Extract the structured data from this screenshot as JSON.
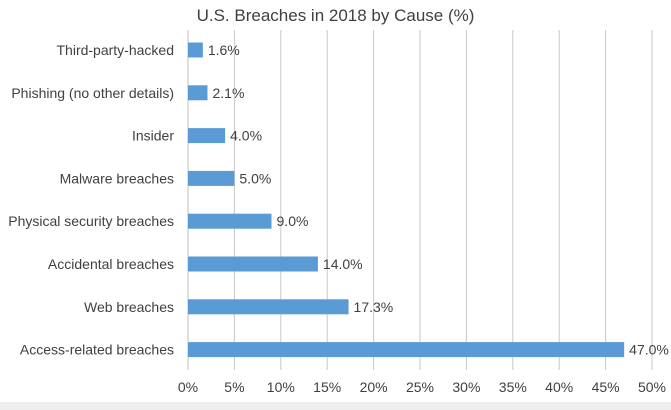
{
  "chart_data": {
    "type": "bar",
    "orientation": "horizontal",
    "title": "U.S. Breaches in 2018 by Cause (%)",
    "xlabel": "",
    "ylabel": "",
    "categories": [
      "Third-party-hacked",
      "Phishing (no other details)",
      "Insider",
      "Malware breaches",
      "Physical security breaches",
      "Accidental breaches",
      "Web breaches",
      "Access-related breaches"
    ],
    "values": [
      1.6,
      2.1,
      4.0,
      5.0,
      9.0,
      14.0,
      17.3,
      47.0
    ],
    "data_labels": [
      "1.6%",
      "2.1%",
      "4.0%",
      "5.0%",
      "9.0%",
      "14.0%",
      "17.3%",
      "47.0%"
    ],
    "xlim": [
      0,
      50
    ],
    "x_ticks": [
      0,
      5,
      10,
      15,
      20,
      25,
      30,
      35,
      40,
      45,
      50
    ],
    "x_tick_labels": [
      "0%",
      "5%",
      "10%",
      "15%",
      "20%",
      "25%",
      "30%",
      "35%",
      "40%",
      "45%",
      "50%"
    ],
    "grid": "vertical",
    "legend": "none",
    "colors": {
      "bar": "#5b9bd5",
      "grid": "#c8c8c8",
      "text": "#404040"
    }
  }
}
